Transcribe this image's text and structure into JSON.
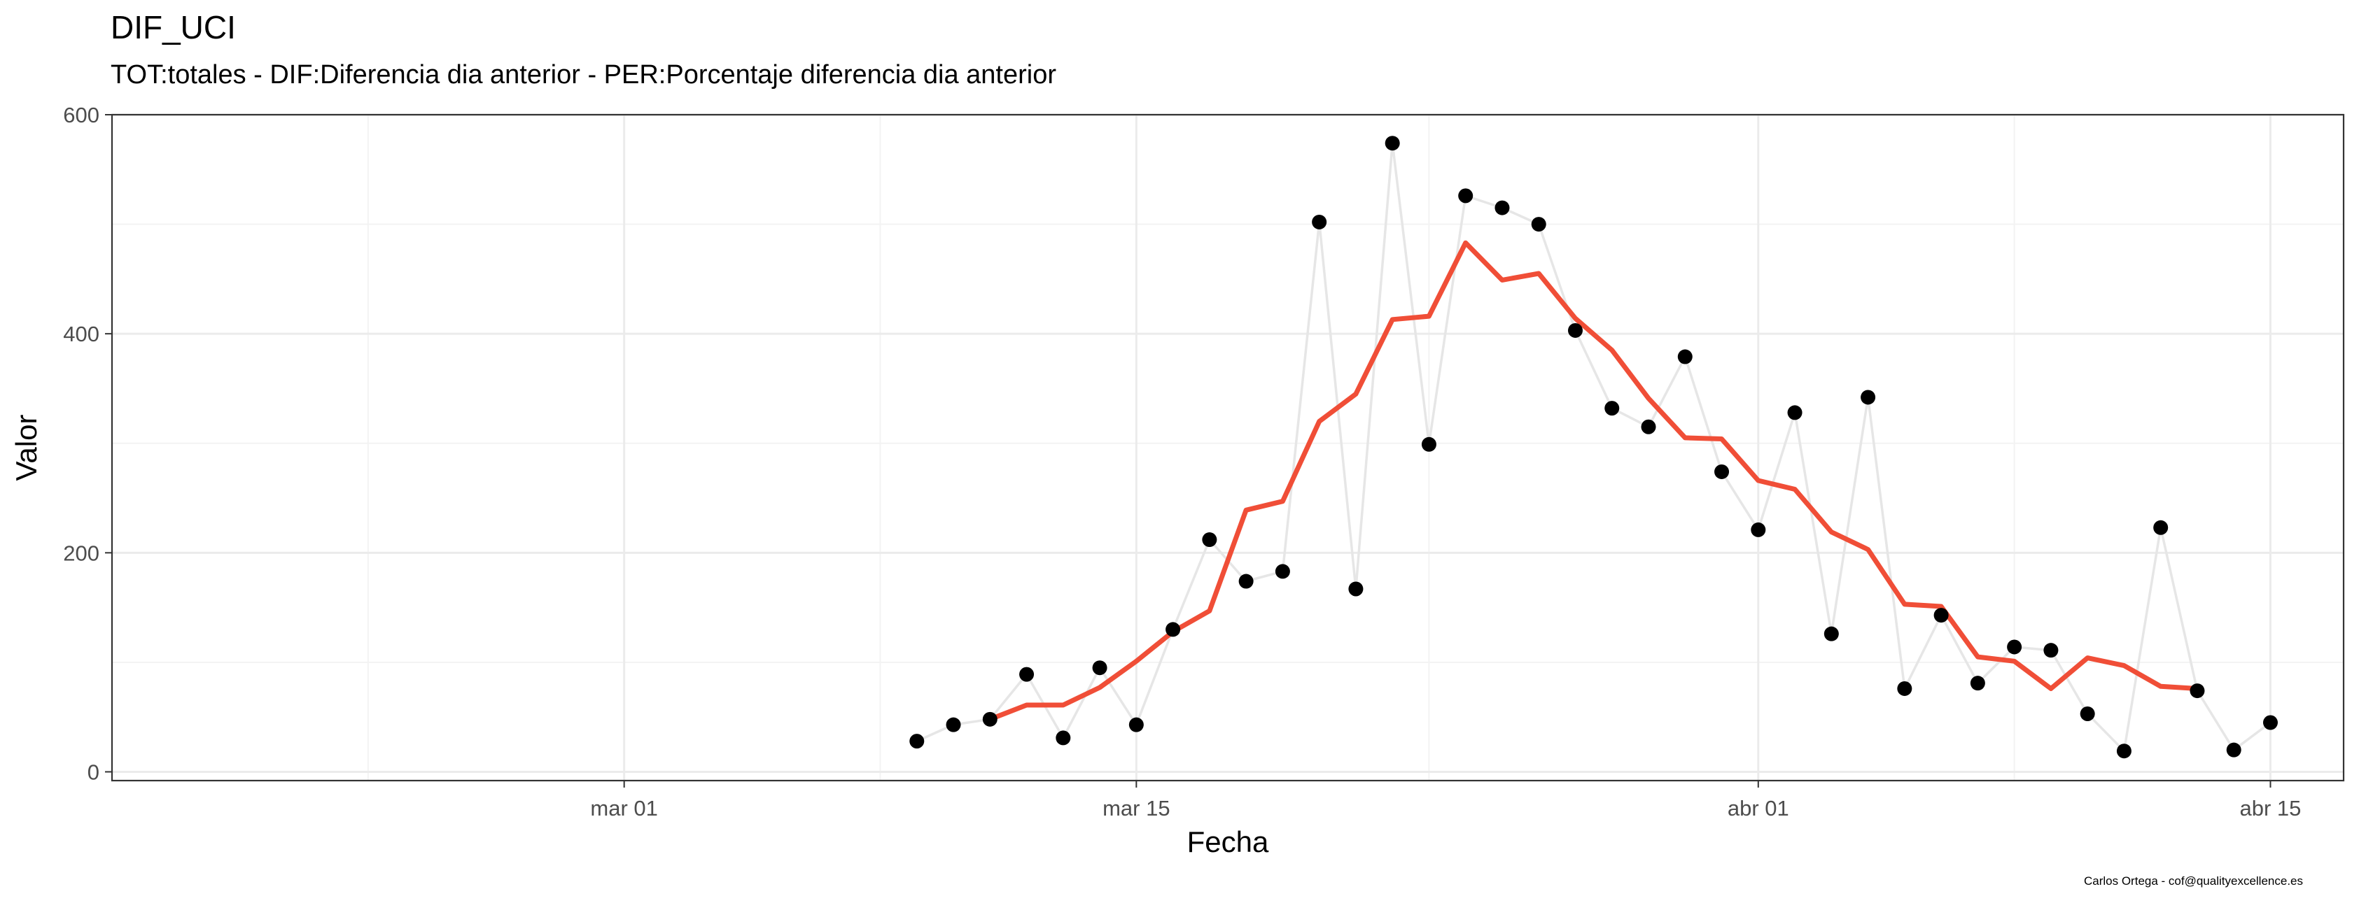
{
  "chart_data": {
    "type": "line",
    "title": "DIF_UCI",
    "subtitle": "TOT:totales - DIF:Diferencia dia anterior - PER:Porcentaje diferencia dia anterior",
    "caption": "Carlos Ortega - cof@qualityexcellence.es",
    "xlabel": "Fecha",
    "ylabel": "Valor",
    "xlim": [
      "2020-02-16",
      "2020-04-17"
    ],
    "ylim": [
      -8,
      600
    ],
    "x_ticks": [
      {
        "date": "2020-03-01",
        "label": "mar 01"
      },
      {
        "date": "2020-03-15",
        "label": "mar 15"
      },
      {
        "date": "2020-04-01",
        "label": "abr 01"
      },
      {
        "date": "2020-04-15",
        "label": "abr 15"
      }
    ],
    "y_ticks": [
      0,
      200,
      400,
      600
    ],
    "grid": true,
    "colors": {
      "points": "#000000",
      "connector_line": "#e6e6e6",
      "smoothed_line": "#f04e37",
      "panel_border": "#333333",
      "grid_major": "#ebebeb",
      "grid_minor": "#f3f3f3"
    },
    "series": [
      {
        "type": "scatter+line",
        "x": [
          "2020-03-09",
          "2020-03-10",
          "2020-03-11",
          "2020-03-12",
          "2020-03-13",
          "2020-03-14",
          "2020-03-15",
          "2020-03-16",
          "2020-03-17",
          "2020-03-18",
          "2020-03-19",
          "2020-03-20",
          "2020-03-21",
          "2020-03-22",
          "2020-03-23",
          "2020-03-24",
          "2020-03-25",
          "2020-03-26",
          "2020-03-27",
          "2020-03-28",
          "2020-03-29",
          "2020-03-30",
          "2020-03-31",
          "2020-04-01",
          "2020-04-02",
          "2020-04-03",
          "2020-04-04",
          "2020-04-05",
          "2020-04-06",
          "2020-04-07",
          "2020-04-08",
          "2020-04-09",
          "2020-04-10",
          "2020-04-11",
          "2020-04-12",
          "2020-04-13",
          "2020-04-14",
          "2020-04-15"
        ],
        "y": [
          28,
          43,
          48,
          89,
          31,
          95,
          43,
          130,
          212,
          174,
          183,
          502,
          167,
          574,
          299,
          526,
          515,
          500,
          403,
          332,
          315,
          379,
          274,
          221,
          328,
          126,
          342,
          76,
          143,
          81,
          114,
          111,
          53,
          19,
          223,
          74,
          20,
          45
        ]
      },
      {
        "type": "line",
        "x": [
          "2020-03-11",
          "2020-03-12",
          "2020-03-13",
          "2020-03-14",
          "2020-03-15",
          "2020-03-16",
          "2020-03-17",
          "2020-03-18",
          "2020-03-19",
          "2020-03-20",
          "2020-03-21",
          "2020-03-22",
          "2020-03-23",
          "2020-03-24",
          "2020-03-25",
          "2020-03-26",
          "2020-03-27",
          "2020-03-28",
          "2020-03-29",
          "2020-03-30",
          "2020-03-31",
          "2020-04-01",
          "2020-04-02",
          "2020-04-03",
          "2020-04-04",
          "2020-04-05",
          "2020-04-06",
          "2020-04-07",
          "2020-04-08",
          "2020-04-09",
          "2020-04-10",
          "2020-04-11",
          "2020-04-12",
          "2020-04-13"
        ],
        "y": [
          48,
          61,
          61,
          77,
          101,
          128,
          147,
          239,
          247,
          320,
          345,
          413,
          416,
          483,
          449,
          455,
          414,
          385,
          341,
          305,
          304,
          266,
          258,
          219,
          203,
          153,
          151,
          105,
          101,
          76,
          104,
          97,
          78,
          76
        ]
      }
    ]
  }
}
